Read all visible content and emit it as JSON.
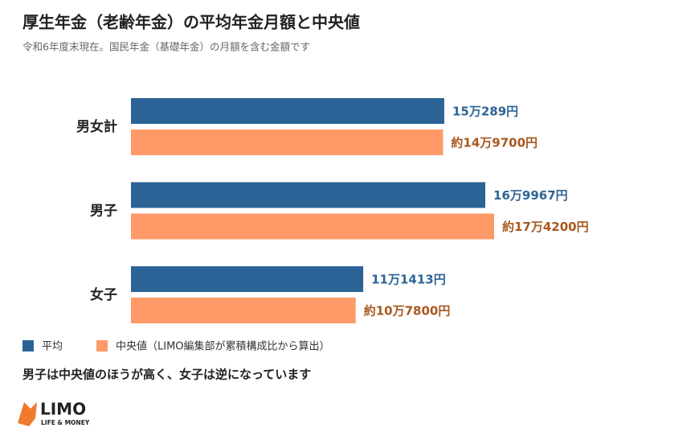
{
  "chart_data": {
    "type": "bar",
    "orientation": "horizontal",
    "title": "厚生年金（老齢年金）の平均年金月額と中央値",
    "subtitle": "令和6年度末現在。国民年金（基礎年金）の月額を含む金額です",
    "categories": [
      "男女計",
      "男子",
      "女子"
    ],
    "series": [
      {
        "name": "平均",
        "color": "#2c6396",
        "label_color": "#2e6494",
        "values": [
          150289,
          169967,
          111413
        ],
        "value_labels": [
          "15万289円",
          "16万9967円",
          "11万1413円"
        ]
      },
      {
        "name": "中央値（LIMO編集部が累積構成比から算出）",
        "color": "#fd9a68",
        "label_color": "#a8581f",
        "values": [
          149700,
          174200,
          107800
        ],
        "value_labels": [
          "約14万9700円",
          "約17万4200円",
          "約10万7800円"
        ]
      }
    ],
    "note": "男子は中央値のほうが高く、女子は逆になっています",
    "logo": {
      "name": "LIMO",
      "tagline": "LIFE & MONEY"
    }
  }
}
